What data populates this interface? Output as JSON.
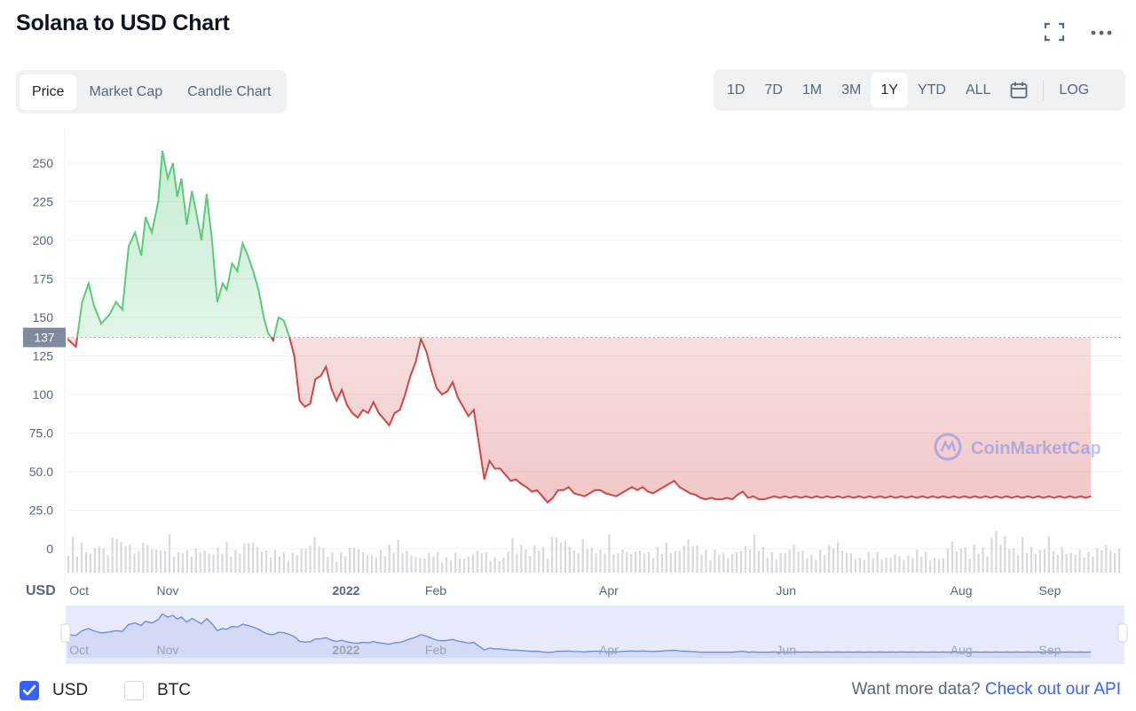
{
  "header": {
    "title": "Solana to USD Chart",
    "expand_icon": "expand-icon",
    "more_icon": "more-horizontal-icon"
  },
  "view_tabs": [
    {
      "label": "Price",
      "active": true
    },
    {
      "label": "Market Cap",
      "active": false
    },
    {
      "label": "Candle Chart",
      "active": false
    }
  ],
  "range_tabs": [
    {
      "label": "1D",
      "active": false
    },
    {
      "label": "7D",
      "active": false
    },
    {
      "label": "1M",
      "active": false
    },
    {
      "label": "3M",
      "active": false
    },
    {
      "label": "1Y",
      "active": true
    },
    {
      "label": "YTD",
      "active": false
    },
    {
      "label": "ALL",
      "active": false
    }
  ],
  "calendar_icon": "calendar-icon",
  "log_label": "LOG",
  "watermark": "CoinMarketCap",
  "currency_label": "USD",
  "colors": {
    "up": "#5cc97b",
    "down": "#d14545",
    "accent": "#3861fb",
    "navigator_line": "#5a77c9"
  },
  "chart_data": {
    "type": "area",
    "title": "Solana to USD Chart",
    "ylabel": "USD",
    "ylim": [
      0,
      262
    ],
    "y_ticks": [
      "250",
      "225",
      "200",
      "175",
      "150",
      "125",
      "100",
      "75.0",
      "50.0",
      "25.0",
      "0"
    ],
    "y_tick_values": [
      250,
      225,
      200,
      175,
      150,
      125,
      100,
      75,
      50,
      25,
      0
    ],
    "x_labels": [
      "Oct",
      "Nov",
      "2022",
      "Feb",
      "Apr",
      "Jun",
      "Aug",
      "Sep"
    ],
    "x_label_pos": [
      0.011,
      0.095,
      0.264,
      0.349,
      0.513,
      0.681,
      0.847,
      0.931
    ],
    "reference_price": 137,
    "reference_label": "137",
    "x": [
      0,
      0.008,
      0.014,
      0.02,
      0.025,
      0.032,
      0.04,
      0.046,
      0.052,
      0.058,
      0.064,
      0.07,
      0.074,
      0.08,
      0.086,
      0.09,
      0.095,
      0.1,
      0.104,
      0.108,
      0.113,
      0.118,
      0.122,
      0.127,
      0.132,
      0.137,
      0.142,
      0.147,
      0.151,
      0.156,
      0.161,
      0.166,
      0.171,
      0.176,
      0.181,
      0.186,
      0.19,
      0.195,
      0.2,
      0.205,
      0.21,
      0.215,
      0.22,
      0.225,
      0.23,
      0.235,
      0.24,
      0.245,
      0.25,
      0.255,
      0.26,
      0.265,
      0.27,
      0.275,
      0.28,
      0.285,
      0.29,
      0.295,
      0.3,
      0.305,
      0.31,
      0.315,
      0.32,
      0.325,
      0.33,
      0.335,
      0.34,
      0.345,
      0.35,
      0.355,
      0.36,
      0.365,
      0.37,
      0.375,
      0.38,
      0.385,
      0.39,
      0.395,
      0.4,
      0.405,
      0.41,
      0.415,
      0.42,
      0.425,
      0.43,
      0.435,
      0.44,
      0.445,
      0.45,
      0.455,
      0.46,
      0.465,
      0.47,
      0.475,
      0.48,
      0.485,
      0.49,
      0.495,
      0.5,
      0.505,
      0.51,
      0.515,
      0.52,
      0.525,
      0.53,
      0.535,
      0.54,
      0.545,
      0.55,
      0.555,
      0.56,
      0.565,
      0.57,
      0.575,
      0.58,
      0.585,
      0.59,
      0.595,
      0.6,
      0.605,
      0.61,
      0.615,
      0.62,
      0.625,
      0.63,
      0.635,
      0.64,
      0.645,
      0.65,
      0.655,
      0.66,
      0.665,
      0.67,
      0.675,
      0.68,
      0.685,
      0.69,
      0.695,
      0.7,
      0.705,
      0.71,
      0.715,
      0.72,
      0.725,
      0.73,
      0.735,
      0.74,
      0.745,
      0.75,
      0.755,
      0.76,
      0.765,
      0.77,
      0.775,
      0.78,
      0.785,
      0.79,
      0.795,
      0.8,
      0.805,
      0.81,
      0.815,
      0.82,
      0.825,
      0.83,
      0.835,
      0.84,
      0.845,
      0.85,
      0.855,
      0.86,
      0.865,
      0.87,
      0.875,
      0.88,
      0.885,
      0.89,
      0.895,
      0.9,
      0.905,
      0.91,
      0.915,
      0.92,
      0.925,
      0.93,
      0.935,
      0.94,
      0.945,
      0.95,
      0.955,
      0.96,
      0.965,
      0.97,
      0.975,
      0.98,
      0.985,
      0.99,
      0.995,
      1
    ],
    "prices": [
      136,
      131,
      160,
      172,
      158,
      146,
      152,
      160,
      155,
      196,
      205,
      190,
      215,
      205,
      225,
      258,
      240,
      250,
      228,
      240,
      210,
      232,
      218,
      200,
      230,
      200,
      160,
      172,
      168,
      185,
      180,
      198,
      190,
      180,
      168,
      150,
      140,
      135,
      150,
      148,
      138,
      125,
      96,
      92,
      94,
      110,
      112,
      118,
      104,
      96,
      103,
      93,
      88,
      85,
      90,
      88,
      95,
      88,
      84,
      80,
      88,
      90,
      100,
      112,
      121,
      136,
      128,
      115,
      104,
      100,
      102,
      108,
      98,
      92,
      86,
      90,
      68,
      45,
      57,
      52,
      52,
      48,
      44,
      45,
      42,
      40,
      37,
      38,
      34,
      30,
      33,
      38,
      38,
      40,
      36,
      35,
      34,
      36,
      38,
      38,
      36,
      35,
      34,
      36,
      38,
      40,
      38,
      40,
      37,
      36,
      38,
      40,
      42,
      44,
      40,
      38,
      36,
      35,
      33,
      32,
      33,
      32,
      32,
      33,
      32,
      35,
      37,
      33,
      34,
      32,
      32,
      33,
      34,
      33,
      34,
      33,
      34,
      33,
      34,
      33,
      34,
      33,
      34,
      33,
      34,
      33,
      34,
      33,
      34,
      33,
      34,
      33,
      34,
      33,
      34,
      33,
      34,
      33,
      34,
      33,
      34,
      33,
      34,
      33,
      34,
      33,
      34,
      33,
      34,
      33,
      34,
      33,
      34,
      33,
      34,
      33,
      34,
      33,
      34,
      33,
      34,
      33,
      34,
      33,
      34,
      33,
      34,
      33,
      34,
      33,
      34,
      33,
      34
    ],
    "volume_levels": [
      0.55,
      0.7,
      0.45,
      0.6,
      0.5,
      0.4,
      0.55,
      0.6,
      0.5,
      0.45,
      0.7,
      1.0,
      0.6,
      0.8,
      0.55,
      0.5,
      0.45,
      0.7,
      0.6,
      0.5,
      0.55,
      0.45,
      0.6,
      0.75,
      0.5,
      0.4,
      0.55,
      0.45,
      0.4,
      0.5,
      0.45,
      0.5,
      0.4,
      0.45,
      0.5,
      0.55,
      0.6,
      0.5,
      0.45,
      0.5,
      0.6,
      0.7,
      0.65,
      0.55,
      0.5,
      0.45,
      0.4,
      0.45,
      0.5,
      0.4,
      0.35,
      0.4,
      0.45,
      0.5,
      0.55,
      0.6,
      0.75,
      0.65,
      0.5,
      0.45,
      0.4,
      0.35,
      0.4,
      0.45,
      0.5,
      0.6,
      0.5,
      0.45,
      0.4,
      0.35,
      0.4,
      0.45,
      0.5,
      0.55,
      0.6,
      0.65,
      0.5,
      0.45,
      0.4,
      0.35,
      0.3,
      0.35,
      0.4,
      0.45,
      0.4,
      0.35,
      0.3,
      0.35,
      0.4,
      0.35,
      0.3,
      0.35,
      0.4,
      0.45,
      0.5,
      0.4,
      0.35,
      0.3,
      0.35,
      0.3
    ],
    "navigator_x_labels": [
      "Oct",
      "Nov",
      "2022",
      "Feb",
      "Apr",
      "Jun",
      "Aug",
      "Sep"
    ]
  },
  "footer": {
    "usd_label": "USD",
    "usd_checked": true,
    "btc_label": "BTC",
    "btc_checked": false,
    "more_data_text": "Want more data?",
    "more_data_link": "Check out our API"
  }
}
